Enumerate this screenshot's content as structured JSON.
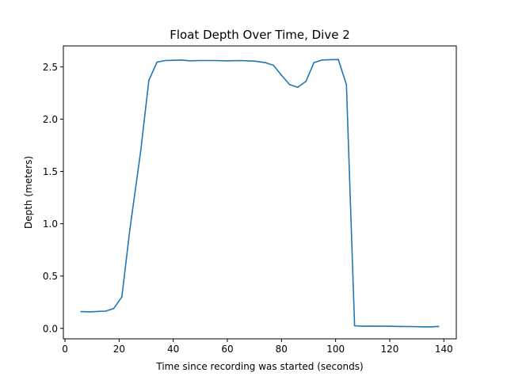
{
  "chart_data": {
    "type": "line",
    "title": "Float Depth Over Time, Dive 2",
    "xlabel": "Time since recording was started (seconds)",
    "ylabel": "Depth (meters)",
    "xlim": [
      -0.6,
      144.6
    ],
    "ylim": [
      -0.1,
      2.7
    ],
    "x_ticks": [
      0,
      20,
      40,
      60,
      80,
      100,
      120,
      140
    ],
    "y_ticks": [
      0.0,
      0.5,
      1.0,
      1.5,
      2.0,
      2.5
    ],
    "y_tick_labels": [
      "0.0",
      "0.5",
      "1.0",
      "1.5",
      "2.0",
      "2.5"
    ],
    "grid": false,
    "line_color": "#1f77b4",
    "series": [
      {
        "x": [
          6,
          9,
          12,
          15,
          18,
          21,
          24,
          28,
          31,
          34,
          37,
          40,
          43,
          46,
          50,
          55,
          60,
          65,
          70,
          74,
          77,
          80,
          83,
          86,
          89,
          92,
          95,
          98,
          101,
          104,
          107,
          110,
          113,
          116,
          120,
          124,
          128,
          132,
          135,
          138
        ],
        "y": [
          0.16,
          0.158,
          0.162,
          0.165,
          0.19,
          0.3,
          0.95,
          1.7,
          2.37,
          2.545,
          2.56,
          2.562,
          2.565,
          2.558,
          2.56,
          2.56,
          2.558,
          2.56,
          2.555,
          2.54,
          2.515,
          2.42,
          2.33,
          2.305,
          2.36,
          2.54,
          2.565,
          2.568,
          2.57,
          2.33,
          0.025,
          0.02,
          0.022,
          0.02,
          0.02,
          0.018,
          0.017,
          0.015,
          0.014,
          0.018
        ]
      }
    ]
  }
}
